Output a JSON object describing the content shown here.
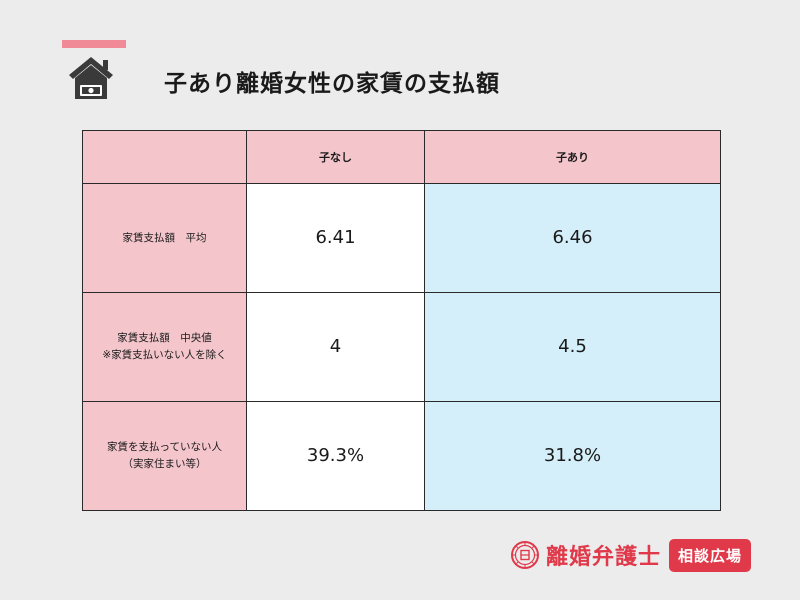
{
  "header": {
    "title": "子あり離婚女性の家賃の支払額",
    "accent_color": "#f08a96",
    "icon": "house-money-icon"
  },
  "table": {
    "columns": [
      "",
      "子なし",
      "子あり"
    ],
    "rows": [
      {
        "label_lines": [
          "家賃支払額　平均"
        ],
        "values": [
          "6.41",
          "6.46"
        ]
      },
      {
        "label_lines": [
          "家賃支払額　中央値",
          "※家賃支払いない人を除く"
        ],
        "values": [
          "4",
          "4.5"
        ]
      },
      {
        "label_lines": [
          "家賃を支払っていない人",
          "（実家住まい等）"
        ],
        "values": [
          "39.3%",
          "31.8%"
        ]
      }
    ],
    "colors": {
      "label_bg": "#f4c6cc",
      "no_child_bg": "#ffffff",
      "with_child_bg": "#d4eff9"
    }
  },
  "footer": {
    "brand_name": "離婚弁護士",
    "brand_tag": "相談広場",
    "brand_color": "#e0394a",
    "seal_icon": "seal-logo-icon"
  }
}
